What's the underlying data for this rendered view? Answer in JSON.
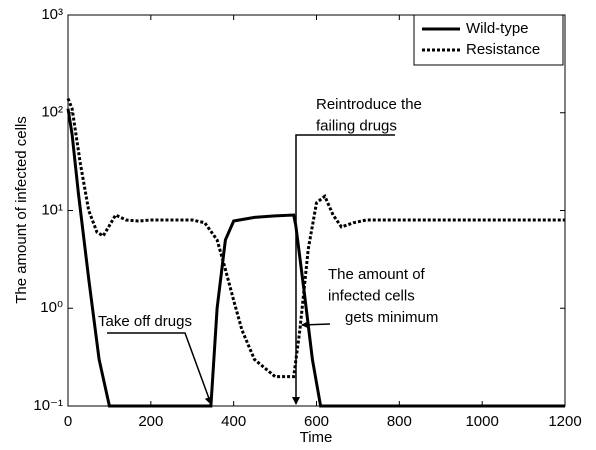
{
  "chart_data": {
    "type": "line",
    "xlabel": "Time",
    "ylabel": "The amount of infected cells",
    "xlim": [
      0,
      1200
    ],
    "xticks": [
      0,
      200,
      400,
      600,
      800,
      1000,
      1200
    ],
    "ylim": [
      0.1,
      1000
    ],
    "log_y": true,
    "yticks": [
      {
        "value": 0.1,
        "label": "10⁻¹"
      },
      {
        "value": 1,
        "label": "10⁰"
      },
      {
        "value": 10,
        "label": "10¹"
      },
      {
        "value": 100,
        "label": "10²"
      },
      {
        "value": 1000,
        "label": "10³"
      }
    ],
    "legend": "upper right",
    "series": [
      {
        "name": "Wild-type",
        "color": "#000000",
        "linestyle": "solid",
        "x": [
          0,
          10,
          25,
          50,
          75,
          100,
          340,
          345,
          360,
          380,
          400,
          450,
          500,
          545,
          550,
          570,
          590,
          610,
          1200
        ],
        "values": [
          110,
          60,
          15,
          2,
          0.3,
          0.1,
          0.1,
          0.1,
          1,
          5,
          7.8,
          8.5,
          8.8,
          9,
          7,
          1.5,
          0.3,
          0.1,
          0.1
        ]
      },
      {
        "name": "Resistance",
        "color": "#000000",
        "linestyle": "dotted",
        "x": [
          0,
          10,
          30,
          50,
          70,
          85,
          100,
          115,
          140,
          170,
          200,
          300,
          330,
          360,
          380,
          400,
          420,
          450,
          500,
          545,
          560,
          580,
          600,
          620,
          640,
          660,
          690,
          720,
          800,
          1200
        ],
        "values": [
          140,
          110,
          30,
          10,
          6,
          5.5,
          7,
          9,
          8,
          7.8,
          8,
          8,
          7.5,
          5,
          2.5,
          1.2,
          0.6,
          0.3,
          0.2,
          0.2,
          0.6,
          4,
          12,
          14,
          9,
          6.8,
          7.5,
          8,
          8,
          8
        ]
      }
    ],
    "annotations": [
      {
        "lines": [
          "Reintroduce the",
          "failing drugs"
        ]
      },
      {
        "lines": [
          "Take off drugs"
        ]
      },
      {
        "lines": [
          "The amount of",
          "infected cells",
          "gets minimum"
        ]
      }
    ]
  }
}
